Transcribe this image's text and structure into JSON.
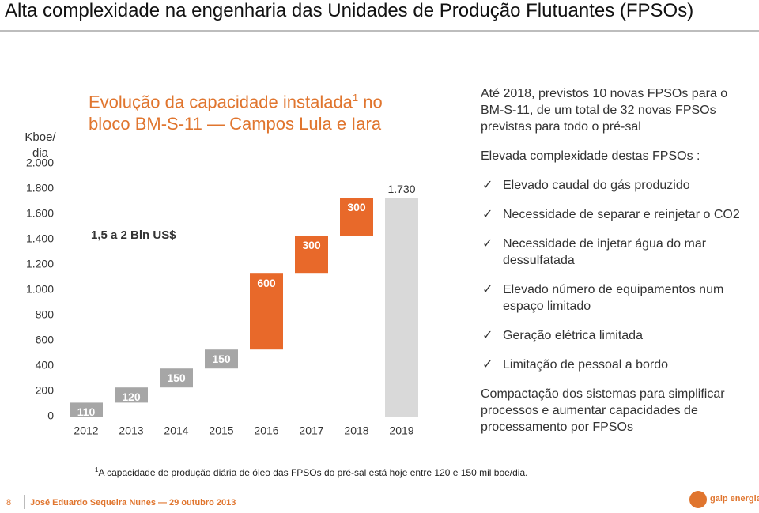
{
  "header": {
    "title": "Alta complexidade na engenharia das Unidades de Produção Flutuantes (FPSOs)"
  },
  "chart_data": {
    "type": "waterfall",
    "title": {
      "text": "Evolução da capacidade instalada",
      "sup": "1",
      "rest": "no bloco BM-S-11 — Campos Lula e Iara"
    },
    "y_label": "Kboe/ dia",
    "annotation": "1,5 a 2 Bln US$",
    "categories": [
      "2012",
      "2013",
      "2014",
      "2015",
      "2016",
      "2017",
      "2018",
      "2019"
    ],
    "values": [
      110,
      120,
      150,
      150,
      600,
      300,
      300,
      1730
    ],
    "value_labels": [
      "110",
      "120",
      "150",
      "150",
      "600",
      "300",
      "300",
      "1.730"
    ],
    "colors": [
      "#a6a6a6",
      "#a6a6a6",
      "#a6a6a6",
      "#a6a6a6",
      "#e8692a",
      "#e8692a",
      "#e8692a",
      "#d9d9d9"
    ],
    "total_last": true,
    "ylim": [
      0,
      2000
    ],
    "yticks": [
      0,
      200,
      400,
      600,
      800,
      {
        "value": 1000,
        "label": "1.000"
      },
      {
        "value": 1200,
        "label": "1.200"
      },
      {
        "value": 1400,
        "label": "1.400"
      },
      {
        "value": 1600,
        "label": "1.600"
      },
      {
        "value": 1800,
        "label": "1.800"
      },
      {
        "value": 2000,
        "label": "2.000"
      }
    ],
    "grid": false
  },
  "panel": {
    "intro": "Até 2018, previstos 10 novas FPSOs para o BM-S-11, de um total de 32 novas FPSOs previstas para todo o pré-sal",
    "lead": "Elevada complexidade destas FPSOs :",
    "items": [
      "Elevado caudal do gás produzido",
      "Necessidade de separar e reinjetar o CO2",
      "Necessidade de injetar água do mar dessulfatada",
      "Elevado número de equipamentos num espaço limitado",
      "Geração elétrica limitada",
      "Limitação de pessoal a bordo"
    ],
    "conclusion": "Compactação dos sistemas para simplificar processos e aumentar capacidades de processamento por FPSOs"
  },
  "footnote": {
    "sup": "1",
    "text": "A capacidade de produção diária de óleo das FPSOs do pré-sal está hoje entre 120 e 150 mil boe/dia."
  },
  "footer": {
    "page": "8",
    "author": "José Eduardo Sequeira Nunes — 29 outubro 2013",
    "logo": "galp energia"
  }
}
